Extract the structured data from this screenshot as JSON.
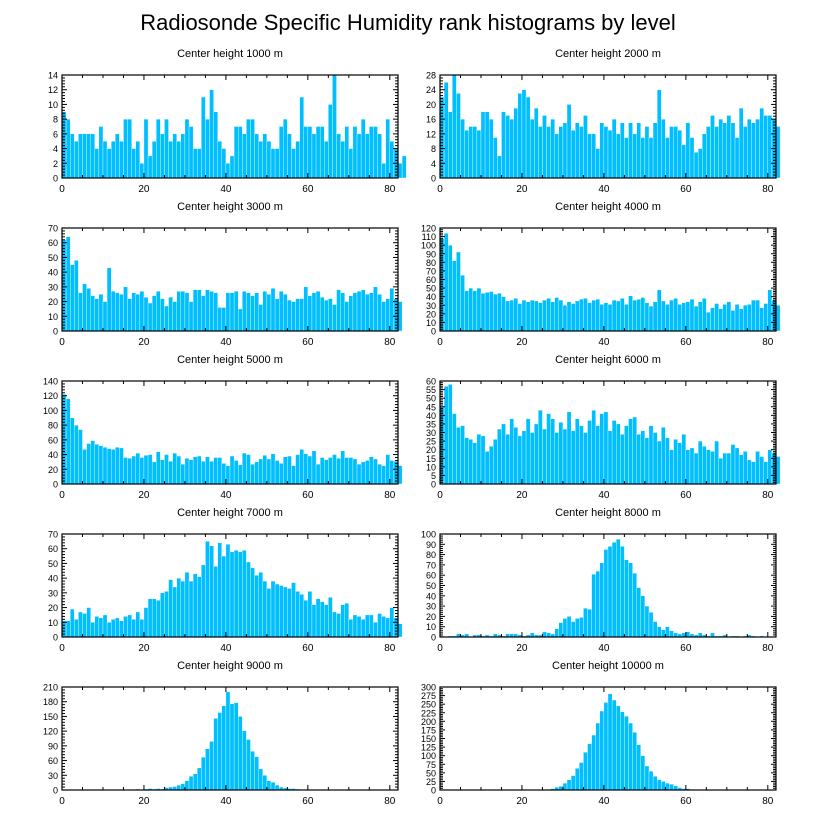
{
  "title": "Radiosonde Specific Humidity rank histograms by level",
  "colors": {
    "bar": "#00bfff",
    "bar_edge": "#ffffff",
    "axis": "#000000"
  },
  "chart_data": [
    {
      "type": "bar",
      "title": "Center height 1000 m",
      "xlim": [
        0,
        82
      ],
      "ylim": [
        0,
        14
      ],
      "xticks": [
        0,
        20,
        40,
        60,
        80
      ],
      "yticks": [
        0,
        2,
        4,
        6,
        8,
        10,
        12,
        14
      ],
      "values": [
        9,
        8,
        6,
        5,
        6,
        6,
        6,
        6,
        4,
        7,
        5,
        4,
        5,
        6,
        5,
        8,
        8,
        4,
        5,
        2,
        8,
        3,
        5,
        8,
        6,
        8,
        5,
        6,
        5,
        6,
        8,
        7,
        4,
        4,
        11,
        8,
        12,
        9,
        5,
        4,
        2,
        3,
        7,
        7,
        6,
        8,
        8,
        6,
        5,
        6,
        5,
        4,
        4,
        7,
        8,
        6,
        4,
        5,
        11,
        7,
        7,
        6,
        7,
        7,
        5,
        10,
        14,
        6,
        5,
        7,
        4,
        7,
        6,
        8,
        6,
        7,
        7,
        6,
        2,
        8,
        5,
        4,
        2,
        3
      ]
    },
    {
      "type": "bar",
      "title": "Center height 2000 m",
      "xlim": [
        0,
        82
      ],
      "ylim": [
        0,
        28
      ],
      "xticks": [
        0,
        20,
        40,
        60,
        80
      ],
      "yticks": [
        0,
        4,
        8,
        12,
        16,
        20,
        24,
        28
      ],
      "values": [
        22,
        26,
        18,
        28,
        23,
        16,
        13,
        14,
        14,
        13,
        18,
        18,
        16,
        11,
        6,
        18,
        17,
        16,
        19,
        23,
        24,
        22,
        16,
        19,
        14,
        17,
        14,
        16,
        12,
        14,
        15,
        20,
        13,
        15,
        14,
        17,
        12,
        12,
        8,
        15,
        14,
        13,
        16,
        12,
        15,
        11,
        15,
        12,
        15,
        11,
        14,
        11,
        15,
        24,
        16,
        11,
        14,
        14,
        13,
        9,
        15,
        11,
        7,
        8,
        12,
        14,
        17,
        14,
        16,
        15,
        17,
        15,
        11,
        19,
        14,
        16,
        15,
        16,
        19,
        17,
        17,
        16,
        14
      ]
    },
    {
      "type": "bar",
      "title": "Center height 3000 m",
      "xlim": [
        0,
        82
      ],
      "ylim": [
        0,
        70
      ],
      "xticks": [
        0,
        20,
        40,
        60,
        80
      ],
      "yticks": [
        0,
        10,
        20,
        30,
        40,
        50,
        60,
        70
      ],
      "values": [
        62,
        64,
        45,
        48,
        26,
        32,
        29,
        24,
        22,
        25,
        20,
        43,
        27,
        26,
        25,
        30,
        22,
        26,
        25,
        27,
        23,
        19,
        24,
        27,
        22,
        17,
        23,
        20,
        27,
        27,
        26,
        20,
        28,
        28,
        24,
        28,
        27,
        26,
        16,
        16,
        26,
        26,
        27,
        15,
        27,
        26,
        24,
        26,
        18,
        27,
        25,
        29,
        22,
        27,
        25,
        21,
        20,
        22,
        22,
        30,
        24,
        26,
        27,
        23,
        21,
        22,
        18,
        28,
        26,
        20,
        24,
        26,
        27,
        28,
        25,
        26,
        30,
        25,
        20,
        22,
        29,
        22,
        20
      ]
    },
    {
      "type": "bar",
      "title": "Center height 4000 m",
      "xlim": [
        0,
        82
      ],
      "ylim": [
        0,
        120
      ],
      "xticks": [
        0,
        20,
        40,
        60,
        80
      ],
      "yticks": [
        0,
        10,
        20,
        30,
        40,
        50,
        60,
        70,
        80,
        90,
        100,
        110,
        120
      ],
      "values": [
        108,
        114,
        100,
        82,
        92,
        65,
        47,
        50,
        47,
        50,
        44,
        45,
        46,
        43,
        44,
        40,
        35,
        36,
        38,
        32,
        36,
        34,
        36,
        35,
        33,
        36,
        38,
        34,
        39,
        36,
        30,
        34,
        32,
        35,
        37,
        38,
        33,
        36,
        37,
        31,
        33,
        31,
        36,
        35,
        38,
        31,
        41,
        36,
        37,
        39,
        33,
        29,
        34,
        48,
        35,
        31,
        36,
        38,
        31,
        33,
        34,
        37,
        29,
        34,
        38,
        22,
        27,
        32,
        26,
        31,
        34,
        24,
        31,
        26,
        30,
        31,
        36,
        36,
        27,
        32,
        48,
        36,
        30
      ]
    },
    {
      "type": "bar",
      "title": "Center height 5000 m",
      "xlim": [
        0,
        82
      ],
      "ylim": [
        0,
        140
      ],
      "xticks": [
        0,
        20,
        40,
        60,
        80
      ],
      "yticks": [
        0,
        20,
        40,
        60,
        80,
        100,
        120,
        140
      ],
      "values": [
        122,
        116,
        90,
        80,
        74,
        47,
        55,
        59,
        54,
        52,
        50,
        48,
        47,
        50,
        49,
        36,
        35,
        38,
        42,
        36,
        39,
        40,
        30,
        44,
        33,
        40,
        31,
        42,
        38,
        27,
        35,
        33,
        37,
        38,
        31,
        37,
        31,
        36,
        36,
        28,
        25,
        38,
        32,
        26,
        42,
        40,
        27,
        30,
        34,
        39,
        34,
        41,
        32,
        28,
        37,
        38,
        25,
        40,
        47,
        41,
        38,
        45,
        27,
        36,
        33,
        36,
        40,
        35,
        45,
        36,
        36,
        34,
        27,
        30,
        32,
        37,
        34,
        27,
        25,
        40,
        32,
        31,
        25
      ]
    },
    {
      "type": "bar",
      "title": "Center height 6000 m",
      "xlim": [
        0,
        82
      ],
      "ylim": [
        0,
        60
      ],
      "xticks": [
        0,
        20,
        40,
        60,
        80
      ],
      "yticks": [
        0,
        5,
        10,
        15,
        20,
        25,
        30,
        35,
        40,
        45,
        50,
        55,
        60
      ],
      "values": [
        45,
        57,
        58,
        41,
        33,
        34,
        27,
        26,
        24,
        29,
        28,
        19,
        22,
        26,
        32,
        35,
        29,
        38,
        33,
        28,
        31,
        38,
        30,
        35,
        43,
        32,
        41,
        38,
        30,
        36,
        32,
        42,
        31,
        38,
        34,
        30,
        37,
        43,
        34,
        41,
        42,
        31,
        37,
        35,
        29,
        34,
        38,
        39,
        29,
        31,
        27,
        34,
        30,
        25,
        33,
        27,
        20,
        26,
        24,
        29,
        20,
        21,
        18,
        25,
        22,
        20,
        19,
        25,
        15,
        18,
        18,
        23,
        21,
        17,
        19,
        14,
        13,
        19,
        16,
        13,
        20,
        18,
        16
      ]
    },
    {
      "type": "bar",
      "title": "Center height 7000 m",
      "xlim": [
        0,
        82
      ],
      "ylim": [
        0,
        70
      ],
      "xticks": [
        0,
        20,
        40,
        60,
        80
      ],
      "yticks": [
        0,
        10,
        20,
        30,
        40,
        50,
        60,
        70
      ],
      "values": [
        11,
        11,
        19,
        12,
        17,
        16,
        20,
        10,
        14,
        13,
        15,
        10,
        12,
        13,
        11,
        14,
        15,
        12,
        17,
        12,
        20,
        26,
        26,
        25,
        30,
        31,
        39,
        34,
        40,
        38,
        44,
        38,
        43,
        41,
        49,
        65,
        62,
        48,
        64,
        55,
        63,
        58,
        59,
        58,
        59,
        51,
        47,
        42,
        44,
        38,
        33,
        38,
        36,
        35,
        34,
        33,
        37,
        31,
        29,
        25,
        31,
        22,
        26,
        24,
        22,
        27,
        17,
        16,
        22,
        23,
        12,
        15,
        14,
        12,
        15,
        15,
        10,
        16,
        14,
        13,
        20,
        13,
        9
      ]
    },
    {
      "type": "bar",
      "title": "Center height 8000 m",
      "xlim": [
        0,
        82
      ],
      "ylim": [
        0,
        100
      ],
      "xticks": [
        0,
        20,
        40,
        60,
        80
      ],
      "yticks": [
        0,
        10,
        20,
        30,
        40,
        50,
        60,
        70,
        80,
        90,
        100
      ],
      "values": [
        1,
        0,
        1,
        1,
        3,
        2,
        3,
        0,
        2,
        2,
        1,
        2,
        1,
        3,
        2,
        1,
        3,
        3,
        3,
        2,
        1,
        2,
        4,
        2,
        2,
        5,
        4,
        3,
        8,
        14,
        18,
        20,
        15,
        18,
        19,
        28,
        27,
        61,
        64,
        72,
        85,
        88,
        92,
        95,
        88,
        75,
        72,
        62,
        48,
        40,
        30,
        24,
        15,
        10,
        7,
        10,
        6,
        4,
        3,
        4,
        5,
        3,
        2,
        4,
        2,
        1,
        4,
        1,
        1,
        2,
        0,
        1,
        1,
        0,
        1,
        2,
        1,
        0,
        1,
        0,
        0,
        0,
        0
      ]
    },
    {
      "type": "bar",
      "title": "Center height 9000 m",
      "xlim": [
        0,
        82
      ],
      "ylim": [
        0,
        210
      ],
      "xticks": [
        0,
        20,
        40,
        60,
        80
      ],
      "yticks": [
        0,
        30,
        60,
        90,
        120,
        150,
        180,
        210
      ],
      "values": [
        0,
        0,
        0,
        0,
        0,
        0,
        0,
        0,
        0,
        0,
        0,
        0,
        1,
        1,
        0,
        1,
        1,
        1,
        2,
        1,
        2,
        3,
        2,
        3,
        2,
        5,
        6,
        7,
        10,
        13,
        19,
        28,
        33,
        45,
        67,
        84,
        99,
        146,
        158,
        172,
        200,
        176,
        178,
        150,
        121,
        103,
        79,
        68,
        43,
        30,
        19,
        16,
        10,
        6,
        4,
        3,
        3,
        2,
        1,
        1,
        0,
        0,
        0,
        0,
        0,
        0,
        0,
        0,
        0,
        0,
        0,
        0,
        0,
        0,
        0,
        0,
        0,
        0,
        0,
        0,
        0,
        0,
        0
      ]
    },
    {
      "type": "bar",
      "title": "Center height 10000 m",
      "xlim": [
        0,
        82
      ],
      "ylim": [
        0,
        300
      ],
      "xticks": [
        0,
        20,
        40,
        60,
        80
      ],
      "yticks": [
        0,
        25,
        50,
        75,
        100,
        125,
        150,
        175,
        200,
        225,
        250,
        275,
        300
      ],
      "values": [
        0,
        0,
        0,
        0,
        0,
        0,
        0,
        0,
        0,
        0,
        0,
        0,
        0,
        0,
        0,
        0,
        0,
        0,
        0,
        0,
        0,
        0,
        0,
        0,
        0,
        1,
        2,
        4,
        8,
        11,
        20,
        30,
        42,
        63,
        80,
        110,
        135,
        160,
        195,
        230,
        255,
        280,
        262,
        245,
        228,
        215,
        195,
        168,
        132,
        100,
        70,
        55,
        40,
        30,
        25,
        20,
        17,
        12,
        7,
        4,
        4,
        2,
        1,
        1,
        0,
        0,
        0,
        0,
        0,
        0,
        0,
        0,
        0,
        0,
        0,
        0,
        0,
        0,
        0,
        0,
        0,
        0,
        0
      ]
    }
  ]
}
